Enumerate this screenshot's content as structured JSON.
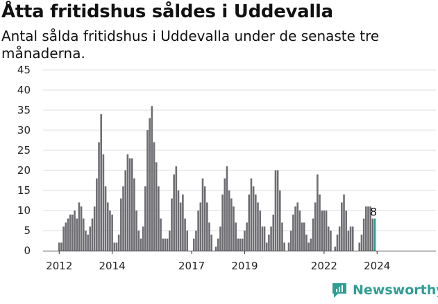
{
  "header": {
    "title": "Åtta fritidshus såldes i Uddevalla",
    "subtitle": "Antal sålda fritidshus i Uddevalla under de senaste tre månaderna."
  },
  "brand": {
    "name": "Newsworthy",
    "color": "#2f9e94"
  },
  "chart_data": {
    "type": "bar",
    "title": "Åtta fritidshus såldes i Uddevalla",
    "subtitle": "Antal sålda fritidshus i Uddevalla under de senaste tre månaderna.",
    "xlabel": "",
    "ylabel": "",
    "ylim": [
      0,
      45
    ],
    "yticks": [
      0,
      5,
      10,
      15,
      20,
      25,
      30,
      35,
      40,
      45
    ],
    "xtick_labels": [
      "2012",
      "2014",
      "2017",
      "2019",
      "2022",
      "2024"
    ],
    "x_start": "2012-01",
    "grid": true,
    "bar_color": "#6e6d72",
    "highlight_color": "#2f9e94",
    "annotation": {
      "text": "8",
      "value": 8
    },
    "values": [
      2,
      2,
      6,
      7,
      8,
      9,
      9,
      10,
      8,
      12,
      11,
      8,
      5,
      4,
      6,
      8,
      11,
      18,
      27,
      34,
      24,
      16,
      12,
      10,
      9,
      2,
      2,
      4,
      13,
      16,
      20,
      24,
      23,
      23,
      18,
      10,
      5,
      3,
      6,
      16,
      30,
      33,
      36,
      27,
      22,
      16,
      8,
      3,
      3,
      3,
      5,
      13,
      19,
      21,
      15,
      12,
      14,
      8,
      5,
      0,
      0,
      3,
      5,
      10,
      12,
      18,
      16,
      12,
      7,
      4,
      0,
      1,
      3,
      6,
      14,
      18,
      21,
      15,
      13,
      11,
      7,
      3,
      3,
      3,
      5,
      7,
      14,
      18,
      16,
      14,
      12,
      10,
      6,
      6,
      2,
      4,
      6,
      9,
      20,
      20,
      15,
      7,
      2,
      0,
      2,
      5,
      9,
      11,
      12,
      10,
      7,
      7,
      4,
      2,
      3,
      8,
      12,
      19,
      14,
      10,
      10,
      10,
      6,
      5,
      0,
      1,
      4,
      6,
      12,
      14,
      10,
      5,
      6,
      6,
      0,
      0,
      2,
      4,
      8,
      11,
      11,
      11,
      8,
      8
    ]
  }
}
